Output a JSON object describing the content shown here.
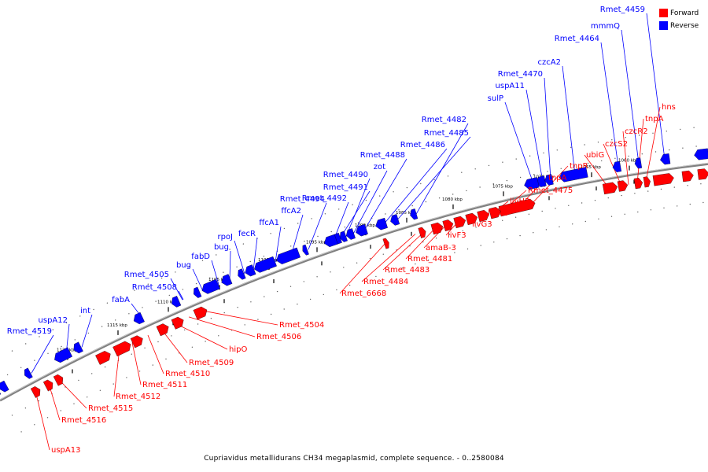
{
  "colors": {
    "forward": "#ff0000",
    "reverse": "#0000ff",
    "backbone": "#808080",
    "tick": "#000000"
  },
  "legend": {
    "forward_label": "Forward",
    "reverse_label": "Reverse"
  },
  "caption": "Cupriavidus metallidurans CH34 megaplasmid, complete sequence. - 0..2580084",
  "scale_ticks": [
    "1060 kbp",
    "1065 kbp",
    "1070 kbp",
    "1075 kbp",
    "1080 kbp",
    "1085 kbp",
    "1090 kbp",
    "1095 kbp",
    "1100 kbp",
    "1105 kbp",
    "1110 kbp",
    "1115 kbp",
    "1120 kbp"
  ],
  "reverse_genes": [
    "Rmet_4459",
    "mmmQ",
    "Rmet_4464",
    "czcA2",
    "Rmet_4470",
    "uspA11",
    "sulP",
    "Rmet_4482",
    "Rmet_4485",
    "Rmet_4486",
    "Rmet_4488",
    "zot",
    "Rmet_4490",
    "Rmet_4491",
    "Rmet_4492",
    "Rmet_4494",
    "ffcA2",
    "ffcA1",
    "fecR",
    "rpoJ",
    "bug",
    "fabD",
    "bug",
    "Rmet_4505",
    "Rmet_4508",
    "fabA",
    "int",
    "uspA12",
    "Rmet_4519"
  ],
  "forward_genes": [
    "hns",
    "tnpA",
    "czcR2",
    "czcS2",
    "ubiG",
    "tnpR",
    "tnpA",
    "Rmet_4475",
    "livH3",
    "livM3",
    "livG3",
    "livF3",
    "amaB-3",
    "Rmet_4481",
    "Rmet_4483",
    "Rmet_4484",
    "Rmet_6668",
    "Rmet_4504",
    "Rmet_4506",
    "hipO",
    "Rmet_4509",
    "Rmet_4510",
    "Rmet_4511",
    "Rmet_4512",
    "Rmet_4515",
    "Rmet_4516",
    "uspA13"
  ]
}
